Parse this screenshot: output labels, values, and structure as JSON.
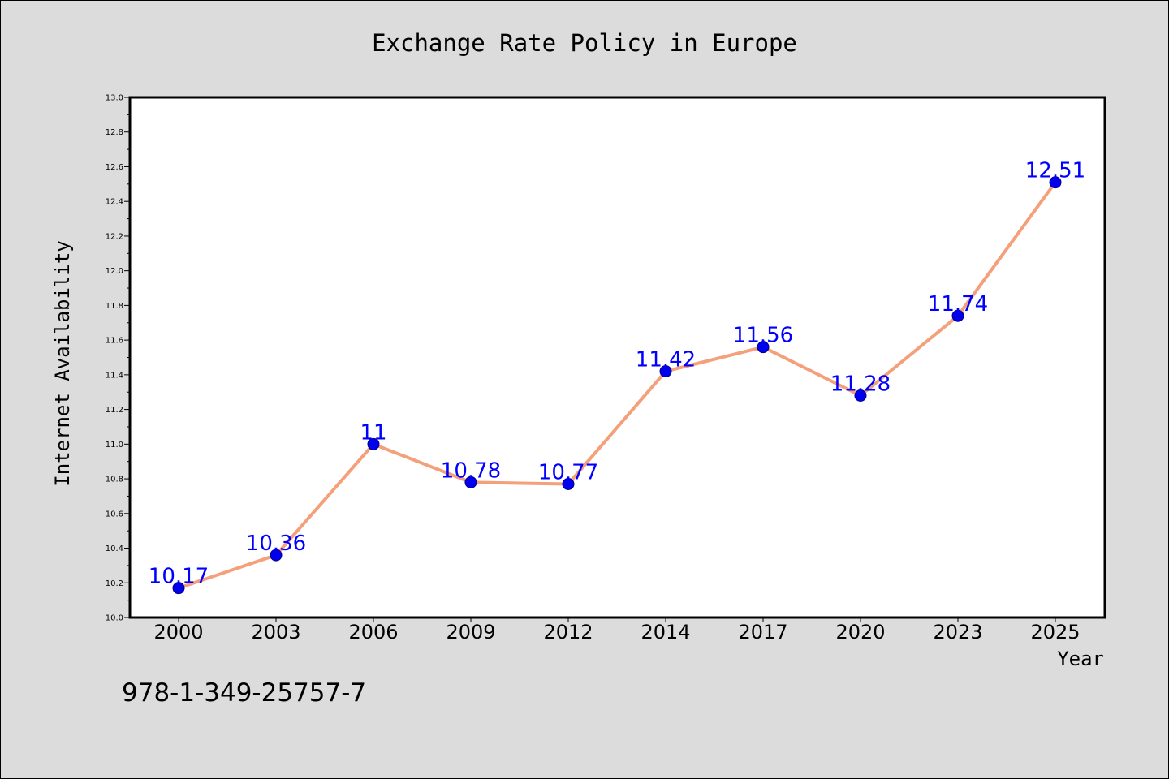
{
  "chart_data": {
    "type": "line",
    "title": "Exchange Rate Policy in Europe",
    "xlabel": "Year",
    "ylabel": "Internet Availability",
    "categories": [
      "2000",
      "2003",
      "2006",
      "2009",
      "2012",
      "2014",
      "2017",
      "2020",
      "2023",
      "2025"
    ],
    "series": [
      {
        "values": [
          10.17,
          10.36,
          11.0,
          10.78,
          10.77,
          11.42,
          11.56,
          11.28,
          11.74,
          12.51
        ],
        "data_labels": [
          "10.17",
          "10.36",
          "11",
          "10.78",
          "10.77",
          "11.42",
          "11.56",
          "11.28",
          "11.74",
          "12.51"
        ],
        "line_color": "#f4a07a",
        "marker_color": "#0000ee",
        "label_color": "#0000ff"
      }
    ],
    "ylim": [
      10.0,
      13.0
    ],
    "yticks": [
      "10.0",
      "10.2",
      "10.4",
      "10.6",
      "10.8",
      "11.0",
      "11.2",
      "11.4",
      "11.6",
      "11.8",
      "12.0",
      "12.2",
      "12.4",
      "12.6",
      "12.8",
      "13.0"
    ],
    "grid": false,
    "annotation": "978-1-349-25757-7"
  }
}
